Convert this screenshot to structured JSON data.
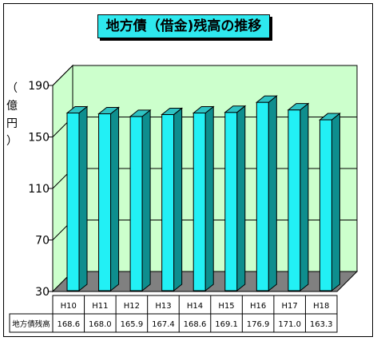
{
  "chart_data": {
    "type": "bar",
    "title": "地方債（借金)残高の推移",
    "ylabel": "（億円）",
    "ylim": [
      30,
      190
    ],
    "yticks": [
      30,
      70,
      110,
      150,
      190
    ],
    "categories": [
      "H10",
      "H11",
      "H12",
      "H13",
      "H14",
      "H15",
      "H16",
      "H17",
      "H18"
    ],
    "series": [
      {
        "name": "地方債残高",
        "values": [
          168.6,
          168.0,
          165.9,
          167.4,
          168.6,
          169.1,
          176.9,
          171.0,
          163.3
        ]
      }
    ],
    "value_labels": [
      "168.6",
      "168.0",
      "165.9",
      "167.4",
      "168.6",
      "169.1",
      "176.9",
      "171.0",
      "163.3"
    ],
    "grid": true,
    "legend": "none",
    "colors": {
      "bar_front": "#22f0f5",
      "bar_side": "#0e8e8e",
      "bar_top": "#2ec3c3",
      "wall": "#ccffcc",
      "floor": "#808080",
      "title_bg": "#2ee8ee"
    }
  }
}
